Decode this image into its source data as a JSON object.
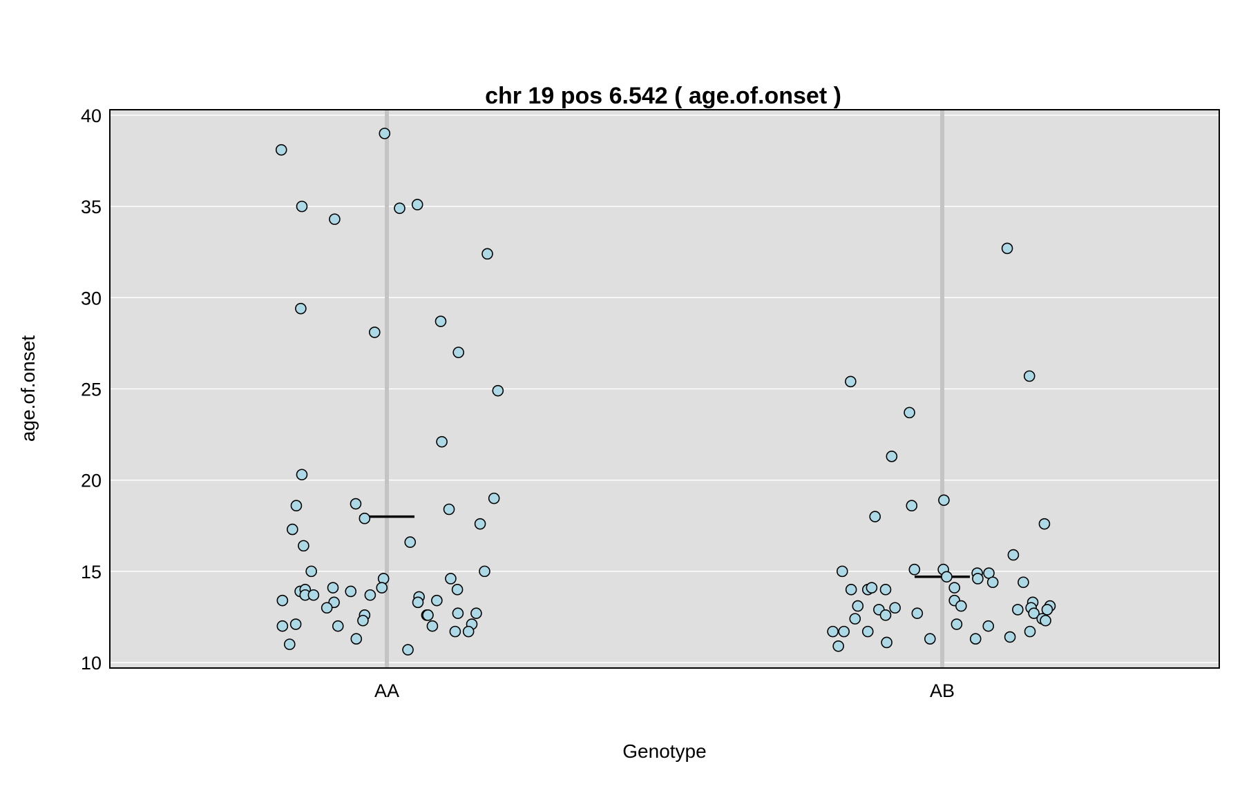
{
  "chart_data": {
    "type": "scatter",
    "title": "chr 19 pos 6.542 ( age.of.onset )",
    "xlabel": "Genotype",
    "ylabel": "age.of.onset",
    "ylim": [
      9.7,
      40.3
    ],
    "yticks": [
      10,
      15,
      20,
      25,
      30,
      35,
      40
    ],
    "categories": [
      "AA",
      "AB"
    ],
    "grid": true,
    "background_color": "#dfdfdf",
    "point_color": "#add8e6",
    "means": {
      "AA": 18.0,
      "AB": 14.7
    },
    "points": [
      {
        "group": "AA",
        "jitter": -0.19,
        "y": 38.1
      },
      {
        "group": "AA",
        "jitter": -0.004,
        "y": 39.0
      },
      {
        "group": "AA",
        "jitter": -0.153,
        "y": 35.0
      },
      {
        "group": "AA",
        "jitter": -0.094,
        "y": 34.3
      },
      {
        "group": "AA",
        "jitter": 0.023,
        "y": 34.9
      },
      {
        "group": "AA",
        "jitter": 0.055,
        "y": 35.1
      },
      {
        "group": "AA",
        "jitter": 0.181,
        "y": 32.4
      },
      {
        "group": "AA",
        "jitter": -0.155,
        "y": 29.4
      },
      {
        "group": "AA",
        "jitter": -0.022,
        "y": 28.1
      },
      {
        "group": "AA",
        "jitter": 0.097,
        "y": 28.7
      },
      {
        "group": "AA",
        "jitter": 0.129,
        "y": 27.0
      },
      {
        "group": "AA",
        "jitter": 0.2,
        "y": 24.9
      },
      {
        "group": "AA",
        "jitter": 0.099,
        "y": 22.1
      },
      {
        "group": "AA",
        "jitter": -0.153,
        "y": 20.3
      },
      {
        "group": "AA",
        "jitter": 0.193,
        "y": 19.0
      },
      {
        "group": "AA",
        "jitter": -0.163,
        "y": 18.6
      },
      {
        "group": "AA",
        "jitter": -0.056,
        "y": 18.7
      },
      {
        "group": "AA",
        "jitter": 0.112,
        "y": 18.4
      },
      {
        "group": "AA",
        "jitter": -0.04,
        "y": 17.9
      },
      {
        "group": "AA",
        "jitter": -0.17,
        "y": 17.3
      },
      {
        "group": "AA",
        "jitter": 0.168,
        "y": 17.6
      },
      {
        "group": "AA",
        "jitter": -0.15,
        "y": 16.4
      },
      {
        "group": "AA",
        "jitter": 0.042,
        "y": 16.6
      },
      {
        "group": "AA",
        "jitter": -0.136,
        "y": 15.0
      },
      {
        "group": "AA",
        "jitter": 0.176,
        "y": 15.0
      },
      {
        "group": "AA",
        "jitter": -0.006,
        "y": 14.6
      },
      {
        "group": "AA",
        "jitter": 0.115,
        "y": 14.6
      },
      {
        "group": "AA",
        "jitter": -0.156,
        "y": 13.9
      },
      {
        "group": "AA",
        "jitter": -0.147,
        "y": 14.0
      },
      {
        "group": "AA",
        "jitter": -0.097,
        "y": 14.1
      },
      {
        "group": "AA",
        "jitter": -0.065,
        "y": 13.9
      },
      {
        "group": "AA",
        "jitter": -0.009,
        "y": 14.1
      },
      {
        "group": "AA",
        "jitter": 0.127,
        "y": 14.0
      },
      {
        "group": "AA",
        "jitter": -0.147,
        "y": 13.7
      },
      {
        "group": "AA",
        "jitter": -0.132,
        "y": 13.7
      },
      {
        "group": "AA",
        "jitter": -0.03,
        "y": 13.7
      },
      {
        "group": "AA",
        "jitter": 0.058,
        "y": 13.6
      },
      {
        "group": "AA",
        "jitter": -0.188,
        "y": 13.4
      },
      {
        "group": "AA",
        "jitter": -0.095,
        "y": 13.3
      },
      {
        "group": "AA",
        "jitter": 0.056,
        "y": 13.3
      },
      {
        "group": "AA",
        "jitter": 0.09,
        "y": 13.4
      },
      {
        "group": "AA",
        "jitter": -0.108,
        "y": 13.0
      },
      {
        "group": "AA",
        "jitter": -0.04,
        "y": 12.6
      },
      {
        "group": "AA",
        "jitter": 0.072,
        "y": 12.6
      },
      {
        "group": "AA",
        "jitter": 0.074,
        "y": 12.6
      },
      {
        "group": "AA",
        "jitter": 0.128,
        "y": 12.7
      },
      {
        "group": "AA",
        "jitter": 0.161,
        "y": 12.7
      },
      {
        "group": "AA",
        "jitter": -0.043,
        "y": 12.3
      },
      {
        "group": "AA",
        "jitter": -0.188,
        "y": 12.0
      },
      {
        "group": "AA",
        "jitter": -0.164,
        "y": 12.1
      },
      {
        "group": "AA",
        "jitter": -0.088,
        "y": 12.0
      },
      {
        "group": "AA",
        "jitter": 0.082,
        "y": 12.0
      },
      {
        "group": "AA",
        "jitter": 0.153,
        "y": 12.1
      },
      {
        "group": "AA",
        "jitter": 0.123,
        "y": 11.7
      },
      {
        "group": "AA",
        "jitter": 0.147,
        "y": 11.7
      },
      {
        "group": "AA",
        "jitter": -0.055,
        "y": 11.3
      },
      {
        "group": "AA",
        "jitter": -0.175,
        "y": 11.0
      },
      {
        "group": "AA",
        "jitter": 0.038,
        "y": 10.7
      },
      {
        "group": "AB",
        "jitter": -0.165,
        "y": 25.4
      },
      {
        "group": "AB",
        "jitter": 0.157,
        "y": 25.7
      },
      {
        "group": "AB",
        "jitter": 0.117,
        "y": 32.7
      },
      {
        "group": "AB",
        "jitter": -0.059,
        "y": 23.7
      },
      {
        "group": "AB",
        "jitter": -0.091,
        "y": 21.3
      },
      {
        "group": "AB",
        "jitter": -0.055,
        "y": 18.6
      },
      {
        "group": "AB",
        "jitter": 0.003,
        "y": 18.9
      },
      {
        "group": "AB",
        "jitter": -0.121,
        "y": 18.0
      },
      {
        "group": "AB",
        "jitter": 0.184,
        "y": 17.6
      },
      {
        "group": "AB",
        "jitter": 0.128,
        "y": 15.9
      },
      {
        "group": "AB",
        "jitter": -0.18,
        "y": 15.0
      },
      {
        "group": "AB",
        "jitter": -0.05,
        "y": 15.1
      },
      {
        "group": "AB",
        "jitter": 0.002,
        "y": 15.1
      },
      {
        "group": "AB",
        "jitter": 0.063,
        "y": 14.9
      },
      {
        "group": "AB",
        "jitter": 0.084,
        "y": 14.9
      },
      {
        "group": "AB",
        "jitter": 0.008,
        "y": 14.7
      },
      {
        "group": "AB",
        "jitter": 0.064,
        "y": 14.6
      },
      {
        "group": "AB",
        "jitter": 0.091,
        "y": 14.4
      },
      {
        "group": "AB",
        "jitter": 0.146,
        "y": 14.4
      },
      {
        "group": "AB",
        "jitter": -0.164,
        "y": 14.0
      },
      {
        "group": "AB",
        "jitter": -0.134,
        "y": 14.0
      },
      {
        "group": "AB",
        "jitter": -0.127,
        "y": 14.1
      },
      {
        "group": "AB",
        "jitter": -0.102,
        "y": 14.0
      },
      {
        "group": "AB",
        "jitter": 0.022,
        "y": 14.1
      },
      {
        "group": "AB",
        "jitter": 0.022,
        "y": 13.4
      },
      {
        "group": "AB",
        "jitter": 0.163,
        "y": 13.3
      },
      {
        "group": "AB",
        "jitter": -0.152,
        "y": 13.1
      },
      {
        "group": "AB",
        "jitter": 0.034,
        "y": 13.1
      },
      {
        "group": "AB",
        "jitter": 0.16,
        "y": 13.0
      },
      {
        "group": "AB",
        "jitter": 0.194,
        "y": 13.1
      },
      {
        "group": "AB",
        "jitter": -0.114,
        "y": 12.9
      },
      {
        "group": "AB",
        "jitter": -0.085,
        "y": 13.0
      },
      {
        "group": "AB",
        "jitter": 0.136,
        "y": 12.9
      },
      {
        "group": "AB",
        "jitter": 0.189,
        "y": 12.9
      },
      {
        "group": "AB",
        "jitter": -0.102,
        "y": 12.6
      },
      {
        "group": "AB",
        "jitter": -0.045,
        "y": 12.7
      },
      {
        "group": "AB",
        "jitter": 0.165,
        "y": 12.7
      },
      {
        "group": "AB",
        "jitter": 0.18,
        "y": 12.4
      },
      {
        "group": "AB",
        "jitter": 0.186,
        "y": 12.3
      },
      {
        "group": "AB",
        "jitter": -0.157,
        "y": 12.4
      },
      {
        "group": "AB",
        "jitter": 0.026,
        "y": 12.1
      },
      {
        "group": "AB",
        "jitter": 0.083,
        "y": 12.0
      },
      {
        "group": "AB",
        "jitter": -0.197,
        "y": 11.7
      },
      {
        "group": "AB",
        "jitter": -0.177,
        "y": 11.7
      },
      {
        "group": "AB",
        "jitter": -0.134,
        "y": 11.7
      },
      {
        "group": "AB",
        "jitter": 0.158,
        "y": 11.7
      },
      {
        "group": "AB",
        "jitter": -0.022,
        "y": 11.3
      },
      {
        "group": "AB",
        "jitter": 0.06,
        "y": 11.3
      },
      {
        "group": "AB",
        "jitter": 0.122,
        "y": 11.4
      },
      {
        "group": "AB",
        "jitter": -0.1,
        "y": 11.1
      },
      {
        "group": "AB",
        "jitter": -0.187,
        "y": 10.9
      }
    ]
  }
}
